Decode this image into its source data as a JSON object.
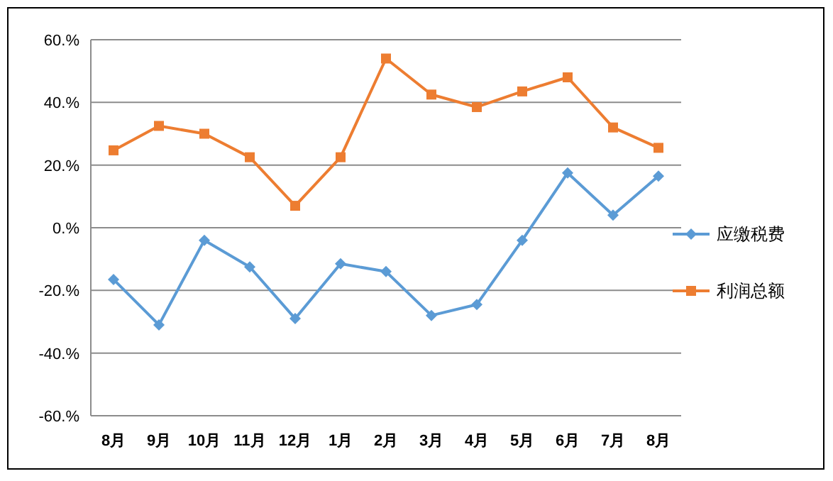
{
  "chart_data": {
    "type": "line",
    "categories": [
      "8月",
      "9月",
      "10月",
      "11月",
      "12月",
      "1月",
      "2月",
      "3月",
      "4月",
      "5月",
      "6月",
      "7月",
      "8月"
    ],
    "series": [
      {
        "name": "应缴税费",
        "color": "#5b9bd5",
        "marker": "diamond",
        "values": [
          -16.5,
          -31,
          -4,
          -12.5,
          -29,
          -11.5,
          -14,
          -28,
          -24.5,
          -4,
          17.5,
          4,
          16.5
        ]
      },
      {
        "name": "利润总额",
        "color": "#ed7d31",
        "marker": "square",
        "values": [
          24.7,
          32.5,
          30,
          22.5,
          7,
          22.5,
          54,
          42.5,
          38.5,
          43.5,
          48,
          32,
          25.5
        ]
      }
    ],
    "ylim": [
      -60,
      60
    ],
    "yticks": [
      {
        "value": -60,
        "label": "-60.%"
      },
      {
        "value": -40,
        "label": "-40.%"
      },
      {
        "value": -20,
        "label": "-20.%"
      },
      {
        "value": 0,
        "label": "0.%"
      },
      {
        "value": 20,
        "label": "20.%"
      },
      {
        "value": 40,
        "label": "40.%"
      },
      {
        "value": 60,
        "label": "60.%"
      }
    ],
    "grid": "y",
    "legend": "right",
    "line_style": "solid"
  }
}
